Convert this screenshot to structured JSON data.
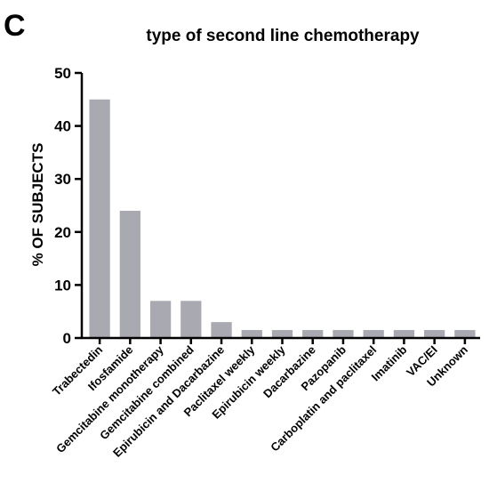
{
  "panel_letter": "C",
  "chart_data": {
    "type": "bar",
    "title": "type of second line chemotherapy",
    "xlabel": "",
    "ylabel": "% OF SUBJECTS",
    "ylim": [
      0,
      50
    ],
    "yticks": [
      0,
      10,
      20,
      30,
      40,
      50
    ],
    "grid": false,
    "categories": [
      "Trabectedin",
      "Ifosfamide",
      "Gemcitabine monotherapy",
      "Gemcitabine combined",
      "Epirubicin and Dacarbazine",
      "Paclitaxel weekly",
      "Epirubicin weekly",
      "Dacarbazine",
      "Pazopanib",
      "Carboplatin and paclitaxel",
      "Imatinib",
      "VAC/EI",
      "Unknown"
    ],
    "values": [
      45,
      24,
      7,
      7,
      3,
      1.5,
      1.5,
      1.5,
      1.5,
      1.5,
      1.5,
      1.5,
      1.5
    ],
    "bar_color": "#a9a9b1"
  }
}
